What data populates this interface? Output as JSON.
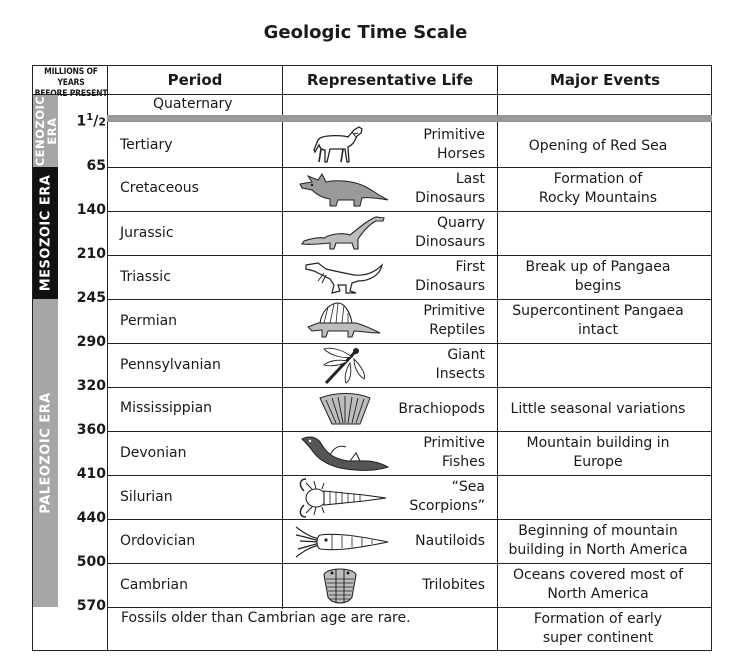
{
  "title": "Geologic Time Scale",
  "headers": {
    "mya_line1": "MILLIONS OF YEARS",
    "mya_line2": "BEFORE PRESENT",
    "period": "Period",
    "life": "Representative Life",
    "events": "Major Events"
  },
  "eras": [
    {
      "line1": "CENOZOIC",
      "line2": "ERA",
      "color": "#a6a6a6"
    },
    {
      "line1": "MESOZOIC ERA",
      "color": "#111111"
    },
    {
      "line1": "PALEOZOIC ERA",
      "color": "#a6a6a6"
    }
  ],
  "mya_first": {
    "whole": "1",
    "num": "1",
    "den": "2"
  },
  "mya_labels": [
    "65",
    "140",
    "210",
    "245",
    "290",
    "320",
    "360",
    "410",
    "440",
    "500",
    "570"
  ],
  "periods": [
    {
      "name": "Quaternary",
      "life": "",
      "event": ""
    },
    {
      "name": "Tertiary",
      "life_line1": "Primitive",
      "life_line2": "Horses",
      "life_icon": "horse-icon",
      "event_line1": "Opening of Red Sea",
      "event_line2": ""
    },
    {
      "name": "Cretaceous",
      "life_line1": "Last",
      "life_line2": "Dinosaurs",
      "life_icon": "triceratops-icon",
      "event_line1": "Formation of",
      "event_line2": "Rocky Mountains"
    },
    {
      "name": "Jurassic",
      "life_line1": "Quarry",
      "life_line2": "Dinosaurs",
      "life_icon": "sauropod-icon",
      "event_line1": "",
      "event_line2": ""
    },
    {
      "name": "Triassic",
      "life_line1": "First",
      "life_line2": "Dinosaurs",
      "life_icon": "raptor-icon",
      "event_line1": "Break up of Pangaea",
      "event_line2": "begins"
    },
    {
      "name": "Permian",
      "life_line1": "Primitive",
      "life_line2": "Reptiles",
      "life_icon": "dimetrodon-icon",
      "event_line1": "Supercontinent Pangaea",
      "event_line2": "intact"
    },
    {
      "name": "Pennsylvanian",
      "life_line1": "Giant",
      "life_line2": "Insects",
      "life_icon": "dragonfly-icon",
      "event_line1": "",
      "event_line2": ""
    },
    {
      "name": "Mississippian",
      "life_line1": "Brachiopods",
      "life_line2": "",
      "life_icon": "brachiopod-icon",
      "event_line1": "Little seasonal variations",
      "event_line2": ""
    },
    {
      "name": "Devonian",
      "life_line1": "Primitive",
      "life_line2": "Fishes",
      "life_icon": "fish-icon",
      "event_line1": "Mountain building in",
      "event_line2": "Europe"
    },
    {
      "name": "Silurian",
      "life_line1": "“Sea",
      "life_line2": "Scorpions”",
      "life_icon": "sea-scorpion-icon",
      "event_line1": "",
      "event_line2": ""
    },
    {
      "name": "Ordovician",
      "life_line1": "Nautiloids",
      "life_line2": "",
      "life_icon": "nautiloid-icon",
      "event_line1": "Beginning of mountain",
      "event_line2": "building in North America"
    },
    {
      "name": "Cambrian",
      "life_line1": "Trilobites",
      "life_line2": "",
      "life_icon": "trilobite-icon",
      "event_line1": "Oceans covered most of",
      "event_line2": "North America"
    }
  ],
  "footer": {
    "note": "Fossils older than Cambrian age are rare.",
    "event_line1": "Formation of early",
    "event_line2": "super continent"
  }
}
